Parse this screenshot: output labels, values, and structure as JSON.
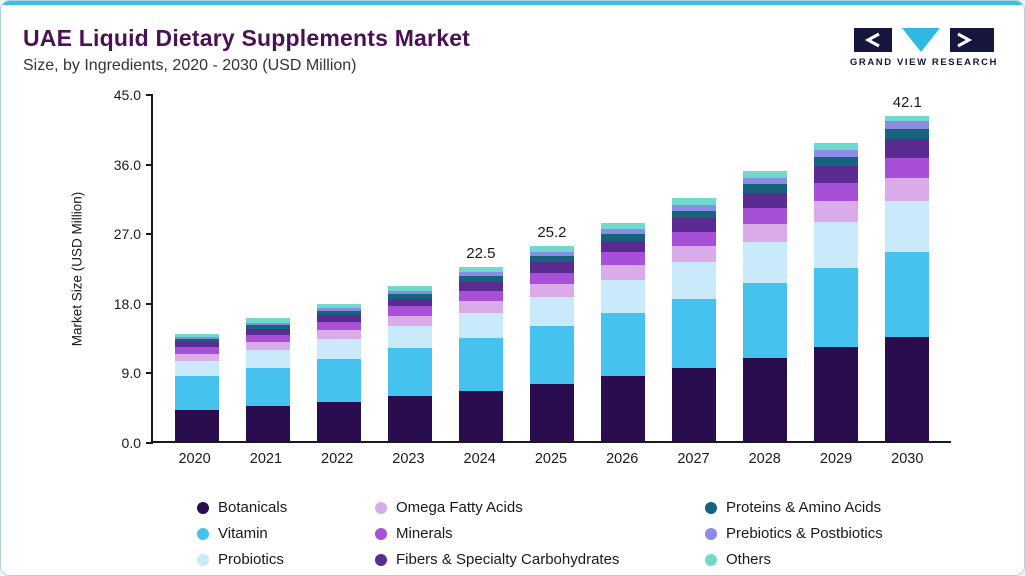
{
  "header": {
    "title": "UAE Liquid Dietary Supplements Market",
    "subtitle": "Size, by Ingredients, 2020 - 2030 (USD Million)",
    "logo_text": "GRAND VIEW RESEARCH"
  },
  "chart_data": {
    "type": "bar",
    "stacked": true,
    "title": "UAE Liquid Dietary Supplements Market Size, by Ingredients, 2020 - 2030 (USD Million)",
    "xlabel": "",
    "ylabel": "Market Size (USD Million)",
    "ylim": [
      0,
      45
    ],
    "yticks": [
      "45.0",
      "36.0",
      "27.0",
      "18.0",
      "9.0",
      "0.0"
    ],
    "grid": false,
    "legend_position": "bottom",
    "categories": [
      "2020",
      "2021",
      "2022",
      "2023",
      "2024",
      "2025",
      "2026",
      "2027",
      "2028",
      "2029",
      "2030"
    ],
    "series": [
      {
        "name": "Botanicals",
        "color": "#2a0d4e",
        "values": [
          4.0,
          4.5,
          5.1,
          5.8,
          6.5,
          7.4,
          8.4,
          9.5,
          10.8,
          12.1,
          13.5
        ]
      },
      {
        "name": "Vitamin",
        "color": "#45c2ee",
        "values": [
          4.4,
          5.0,
          5.5,
          6.2,
          6.8,
          7.5,
          8.2,
          8.9,
          9.6,
          10.3,
          10.9
        ]
      },
      {
        "name": "Probiotics",
        "color": "#c8eafa",
        "values": [
          2.0,
          2.3,
          2.6,
          2.9,
          3.3,
          3.7,
          4.2,
          4.7,
          5.3,
          5.9,
          6.6
        ]
      },
      {
        "name": "Omega Fatty Acids",
        "color": "#d9abe9",
        "values": [
          0.9,
          1.0,
          1.2,
          1.3,
          1.5,
          1.7,
          1.9,
          2.1,
          2.4,
          2.7,
          3.0
        ]
      },
      {
        "name": "Minerals",
        "color": "#a74fd6",
        "values": [
          0.8,
          0.9,
          1.0,
          1.2,
          1.3,
          1.5,
          1.7,
          1.9,
          2.1,
          2.4,
          2.6
        ]
      },
      {
        "name": "Fibers & Specialty Carbohydrates",
        "color": "#5a2b91",
        "values": [
          0.7,
          0.8,
          0.9,
          1.0,
          1.2,
          1.3,
          1.5,
          1.7,
          1.9,
          2.1,
          2.4
        ]
      },
      {
        "name": "Proteins & Amino Acids",
        "color": "#16637e",
        "values": [
          0.4,
          0.5,
          0.5,
          0.6,
          0.7,
          0.8,
          0.9,
          1.0,
          1.1,
          1.2,
          1.4
        ]
      },
      {
        "name": "Prebiotics & Postbiotics",
        "color": "#8b8ce4",
        "values": [
          0.3,
          0.3,
          0.4,
          0.4,
          0.5,
          0.5,
          0.6,
          0.7,
          0.8,
          0.9,
          1.0
        ]
      },
      {
        "name": "Others",
        "color": "#6fd9cc",
        "values": [
          0.3,
          0.6,
          0.5,
          0.7,
          0.7,
          0.8,
          0.8,
          1.0,
          0.9,
          0.9,
          0.7
        ]
      }
    ],
    "totals": [
      13.8,
      15.9,
      17.7,
      20.1,
      22.5,
      25.2,
      28.2,
      31.5,
      34.9,
      38.5,
      42.1
    ],
    "bar_labels": {
      "2024": "22.5",
      "2025": "25.2",
      "2030": "42.1"
    },
    "legend_order": [
      0,
      3,
      6,
      1,
      4,
      7,
      2,
      5,
      8
    ]
  },
  "colors": {
    "top_accent": "#3ac0df",
    "title": "#4a1254",
    "axis": "#1a1a1a",
    "logo_dark": "#16163f",
    "logo_cyan": "#2fb9e0"
  }
}
